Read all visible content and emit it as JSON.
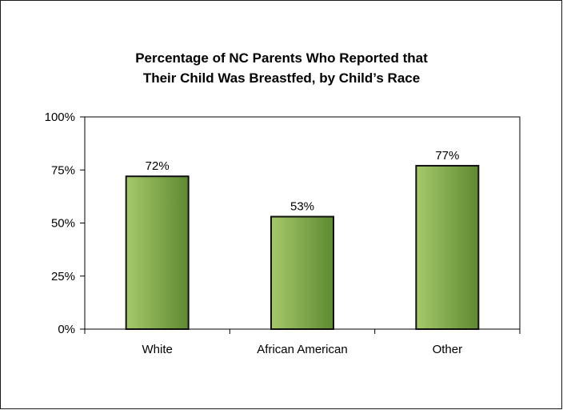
{
  "chart_data": {
    "type": "bar",
    "title_lines": [
      "Percentage of NC Parents Who Reported that",
      "Their Child Was Breastfed, by Child’s Race"
    ],
    "categories": [
      "White",
      "African American",
      "Other"
    ],
    "values": [
      72,
      53,
      77
    ],
    "data_labels": [
      "72%",
      "53%",
      "77%"
    ],
    "y_ticks": [
      "0%",
      "25%",
      "50%",
      "75%",
      "100%"
    ],
    "ylim": [
      0,
      100
    ],
    "grid": false,
    "legend": "none",
    "colors": {
      "bar_light": "#a5c96a",
      "bar_dark": "#5e8a30",
      "bar_outline": "#111111"
    }
  }
}
